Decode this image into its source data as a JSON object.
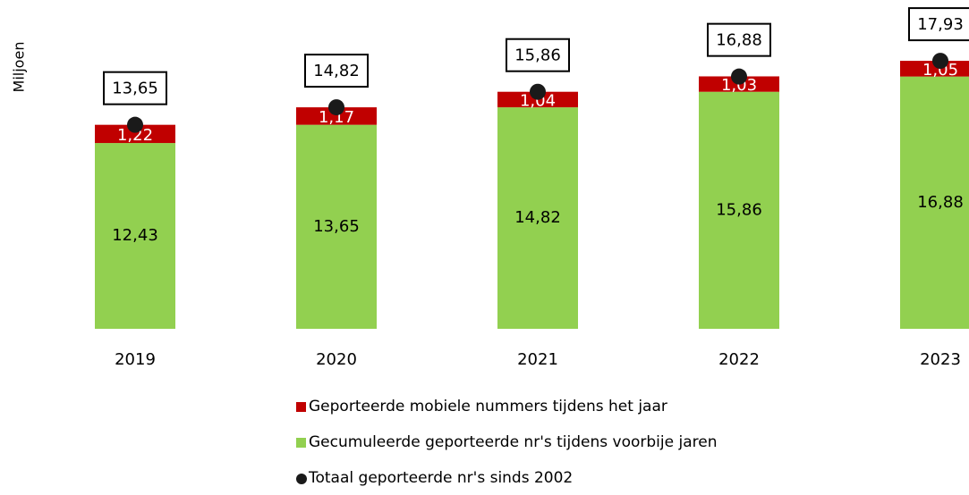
{
  "chart_data": {
    "type": "bar",
    "stacked": true,
    "y_label": "Miljoen",
    "categories": [
      "2019",
      "2020",
      "2021",
      "2022",
      "2023"
    ],
    "ylim": [
      0,
      22
    ],
    "series": [
      {
        "name": "Geporteerde mobiele nummers tijdens het jaar",
        "color": "#c00000",
        "values": [
          1.22,
          1.17,
          1.04,
          1.03,
          1.05
        ],
        "value_labels": [
          "1,22",
          "1,17",
          "1,04",
          "1,03",
          "1,05"
        ]
      },
      {
        "name": "Gecumuleerde geporteerde nr's tijdens voorbije jaren",
        "color": "#92d050",
        "values": [
          12.43,
          13.65,
          14.82,
          15.86,
          16.88
        ],
        "value_labels": [
          "12,43",
          "13,65",
          "14,82",
          "15,86",
          "16,88"
        ]
      },
      {
        "name": "Totaal geporteerde nr's sinds 2002",
        "color": "#1a1a1a",
        "type": "scatter",
        "values": [
          13.65,
          14.82,
          15.86,
          16.88,
          17.93
        ],
        "value_labels": [
          "13,65",
          "14,82",
          "15,86",
          "16,88",
          "17,93"
        ]
      }
    ]
  }
}
